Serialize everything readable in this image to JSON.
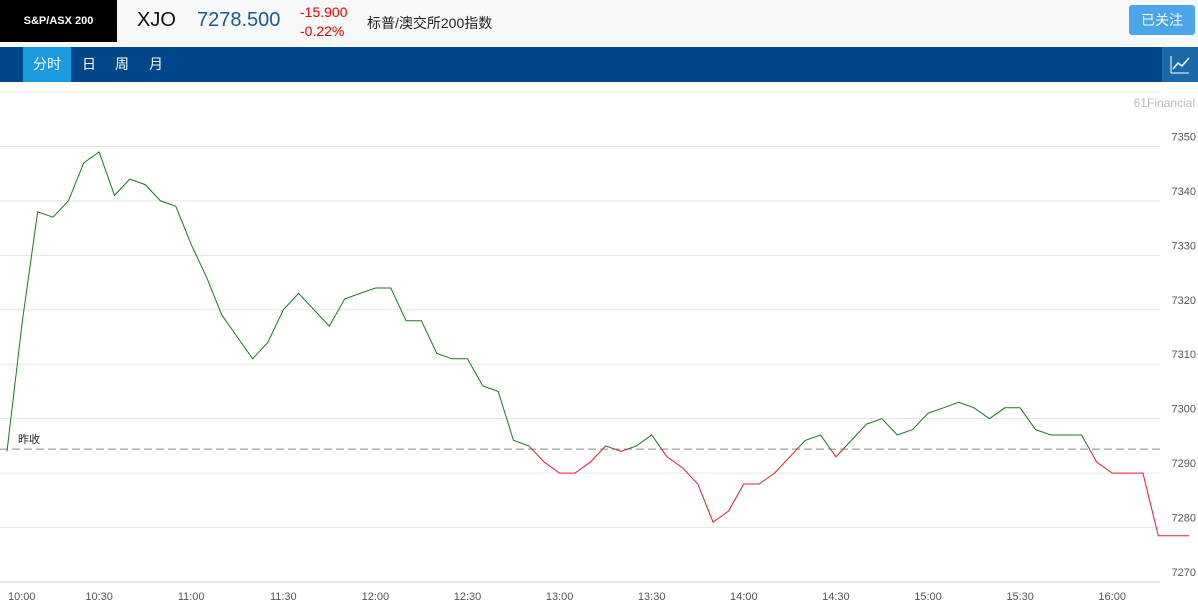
{
  "header": {
    "logo": "S&P/ASX 200",
    "symbol": "XJO",
    "price": "7278.500",
    "change": "-15.900",
    "change_pct": "-0.22%",
    "name": "标普/澳交所200指数",
    "follow_button": "已关注"
  },
  "tabs": [
    "分时",
    "日",
    "周",
    "月"
  ],
  "chart_data": {
    "type": "line",
    "watermark": "61Financial",
    "prev_close_label": "昨收",
    "prev_close": 7294.4,
    "x": [
      "10:00",
      null,
      null,
      null,
      null,
      null,
      "10:30",
      null,
      null,
      null,
      null,
      null,
      "11:00",
      null,
      null,
      null,
      null,
      null,
      "11:30",
      null,
      null,
      null,
      null,
      null,
      "12:00",
      null,
      null,
      null,
      null,
      null,
      "12:30",
      null,
      null,
      null,
      null,
      null,
      "13:00",
      null,
      null,
      null,
      null,
      null,
      "13:30",
      null,
      null,
      null,
      null,
      null,
      "14:00",
      null,
      null,
      null,
      null,
      null,
      "14:30",
      null,
      null,
      null,
      null,
      null,
      "15:00",
      null,
      null,
      null,
      null,
      null,
      "15:30",
      null,
      null,
      null,
      null,
      null,
      "16:00",
      null,
      null,
      null,
      null,
      null
    ],
    "values": [
      7294,
      7318,
      7338,
      7337,
      7340,
      7347,
      7349,
      7341,
      7344,
      7343,
      7340,
      7339,
      7332,
      7326,
      7319,
      7315,
      7311,
      7314,
      7320,
      7323,
      7320,
      7317,
      7322,
      7323,
      7324,
      7324,
      7318,
      7318,
      7312,
      7311,
      7311,
      7306,
      7305,
      7296,
      7295,
      7292,
      7290,
      7290,
      7292,
      7295,
      7294,
      7295,
      7297,
      7293,
      7291,
      7288,
      7281,
      7283,
      7288,
      7288,
      7290,
      7293,
      7296,
      7297,
      7293,
      7296,
      7299,
      7300,
      7297,
      7298,
      7301,
      7302,
      7303,
      7302,
      7300,
      7302,
      7302,
      7298,
      7297,
      7297,
      7297,
      7292,
      7290,
      7290,
      7290,
      7278.5,
      7278.5,
      7278.5
    ],
    "color_up": "#1a7a1a",
    "color_down": "#e02020",
    "ylim": [
      7270,
      7360
    ],
    "yticks": [
      7270,
      7280,
      7290,
      7300,
      7310,
      7320,
      7330,
      7340,
      7350
    ],
    "grid": true
  }
}
